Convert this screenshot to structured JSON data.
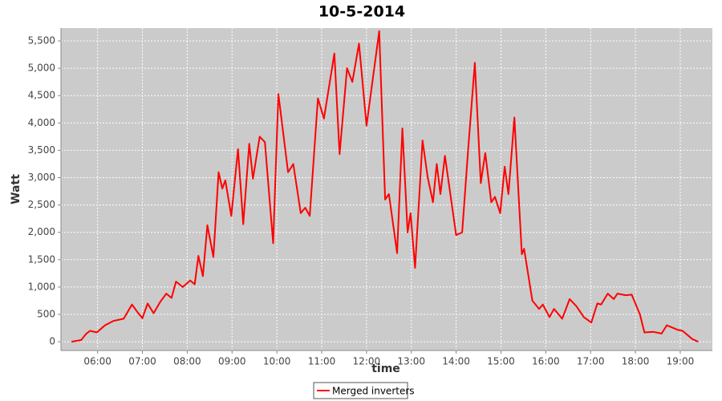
{
  "chart_data": {
    "type": "line",
    "title": "10-5-2014",
    "x_label": "time",
    "y_label": "Watt",
    "x": [
      "05:25",
      "05:38",
      "05:45",
      "05:50",
      "05:59",
      "06:10",
      "06:21",
      "06:35",
      "06:46",
      "06:54",
      "07:00",
      "07:07",
      "07:15",
      "07:24",
      "07:32",
      "07:39",
      "07:45",
      "07:54",
      "08:04",
      "08:10",
      "08:15",
      "08:21",
      "08:27",
      "08:35",
      "08:42",
      "08:47",
      "08:51",
      "08:59",
      "09:08",
      "09:15",
      "09:23",
      "09:28",
      "09:37",
      "09:44",
      "09:55",
      "10:02",
      "10:15",
      "10:22",
      "10:32",
      "10:38",
      "10:44",
      "10:55",
      "11:03",
      "11:17",
      "11:24",
      "11:34",
      "11:41",
      "11:50",
      "12:00",
      "12:17",
      "12:25",
      "12:30",
      "12:41",
      "12:48",
      "12:55",
      "12:59",
      "13:05",
      "13:15",
      "13:22",
      "13:29",
      "13:34",
      "13:39",
      "13:45",
      "14:00",
      "14:08",
      "14:16",
      "14:25",
      "14:33",
      "14:39",
      "14:47",
      "14:52",
      "14:59",
      "15:05",
      "15:10",
      "15:18",
      "15:28",
      "15:31",
      "15:42",
      "15:51",
      "15:56",
      "16:05",
      "16:11",
      "16:22",
      "16:32",
      "16:41",
      "16:51",
      "17:01",
      "17:09",
      "17:14",
      "17:23",
      "17:31",
      "17:36",
      "17:47",
      "17:55",
      "18:06",
      "18:12",
      "18:24",
      "18:35",
      "18:42",
      "18:56",
      "19:03",
      "19:16",
      "19:24"
    ],
    "series": [
      {
        "name": "Merged inverters",
        "color": "#ff0000",
        "values": [
          0,
          30,
          150,
          200,
          170,
          300,
          380,
          420,
          680,
          530,
          430,
          700,
          520,
          730,
          880,
          800,
          1100,
          1000,
          1120,
          1050,
          1570,
          1200,
          2130,
          1550,
          3100,
          2800,
          2950,
          2300,
          3520,
          2150,
          3620,
          2980,
          3750,
          3650,
          1800,
          4530,
          3100,
          3250,
          2350,
          2450,
          2300,
          4450,
          4080,
          5270,
          3430,
          5000,
          4750,
          5450,
          3950,
          5680,
          2600,
          2700,
          1620,
          3900,
          2000,
          2350,
          1350,
          3680,
          3000,
          2550,
          3250,
          2700,
          3400,
          1950,
          2000,
          3500,
          5100,
          2900,
          3450,
          2550,
          2650,
          2350,
          3200,
          2700,
          4100,
          1600,
          1700,
          750,
          600,
          680,
          450,
          600,
          420,
          780,
          650,
          450,
          350,
          700,
          680,
          880,
          780,
          880,
          850,
          860,
          500,
          170,
          180,
          150,
          300,
          220,
          200,
          50,
          0
        ]
      }
    ],
    "xlim": [
      "05:11",
      "19:43"
    ],
    "xticks": [
      "06:00",
      "07:00",
      "08:00",
      "09:00",
      "10:00",
      "11:00",
      "12:00",
      "13:00",
      "14:00",
      "15:00",
      "16:00",
      "17:00",
      "18:00",
      "19:00"
    ],
    "ylim": [
      -160,
      5735
    ],
    "yticks": [
      0,
      500,
      {
        "value": 1000,
        "label": "1,000"
      },
      {
        "value": 1500,
        "label": "1,500"
      },
      {
        "value": 2000,
        "label": "2,000"
      },
      {
        "value": 2500,
        "label": "2,500"
      },
      {
        "value": 3000,
        "label": "3,000"
      },
      {
        "value": 3500,
        "label": "3,500"
      },
      {
        "value": 4000,
        "label": "4,000"
      },
      {
        "value": 4500,
        "label": "4,500"
      },
      {
        "value": 5000,
        "label": "5,000"
      },
      {
        "value": 5500,
        "label": "5,500"
      }
    ],
    "grid": true,
    "legend": "bottom",
    "plot_background": "#cbcbcb"
  }
}
